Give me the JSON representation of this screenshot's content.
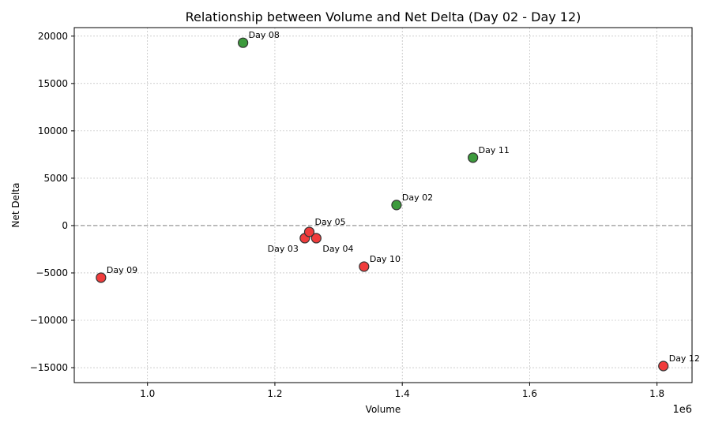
{
  "chart_data": {
    "type": "scatter",
    "title": "Relationship between Volume and Net Delta (Day 02 - Day 12)",
    "xlabel": "Volume",
    "ylabel": "Net Delta",
    "x_offset_label": "1e6",
    "xlim": [
      0.885,
      1.855
    ],
    "ylim": [
      -16580,
      20900
    ],
    "x_scale_factor": 1000000,
    "xticks": [
      1.0,
      1.2,
      1.4,
      1.6,
      1.8
    ],
    "xtick_labels": [
      "1.0",
      "1.2",
      "1.4",
      "1.6",
      "1.8"
    ],
    "yticks": [
      -15000,
      -10000,
      -5000,
      0,
      5000,
      10000,
      15000,
      20000
    ],
    "ytick_labels": [
      "−15000",
      "−10000",
      "−5000",
      "0",
      "5000",
      "10000",
      "15000",
      "20000"
    ],
    "grid": true,
    "reference_line_y": 0,
    "colors": {
      "positive": "#3c9a3c",
      "negative": "#f03c3c",
      "edge": "#333333",
      "refline": "#808080"
    },
    "points": [
      {
        "label": "Day 02",
        "x": 1.391,
        "y": 2170
      },
      {
        "label": "Day 03",
        "x": 1.247,
        "y": -1330
      },
      {
        "label": "Day 04",
        "x": 1.265,
        "y": -1330
      },
      {
        "label": "Day 05",
        "x": 1.254,
        "y": -670
      },
      {
        "label": "Day 08",
        "x": 1.15,
        "y": 19300
      },
      {
        "label": "Day 09",
        "x": 0.927,
        "y": -5500
      },
      {
        "label": "Day 10",
        "x": 1.34,
        "y": -4330
      },
      {
        "label": "Day 11",
        "x": 1.511,
        "y": 7170
      },
      {
        "label": "Day 12",
        "x": 1.81,
        "y": -14830
      }
    ]
  }
}
